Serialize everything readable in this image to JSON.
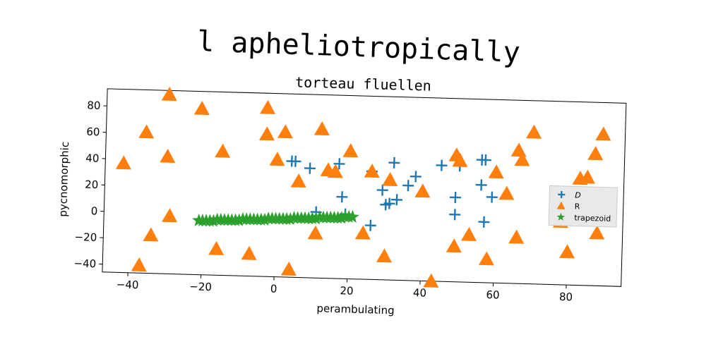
{
  "chart_data": {
    "type": "scatter",
    "title": "l apheliotropically",
    "subtitle": "torteau fluellen",
    "xlabel": "perambulating",
    "ylabel": "pycnomorphic",
    "xlim": [
      -47,
      95
    ],
    "ylim": [
      -46,
      93
    ],
    "x_ticks": [
      -40,
      -20,
      0,
      20,
      40,
      60,
      80
    ],
    "y_ticks": [
      -40,
      -20,
      0,
      20,
      40,
      60,
      80
    ],
    "grid": false,
    "legend_position": "right",
    "series": [
      {
        "name": "D",
        "marker": "plus",
        "color": "#1f77b4",
        "points": [
          [
            4,
            42
          ],
          [
            5,
            42
          ],
          [
            9,
            37
          ],
          [
            17,
            41
          ],
          [
            18,
            16
          ],
          [
            11,
            4
          ],
          [
            19,
            3
          ],
          [
            26,
            36
          ],
          [
            26,
            -5
          ],
          [
            29,
            22
          ],
          [
            30,
            11
          ],
          [
            31,
            12
          ],
          [
            32,
            43
          ],
          [
            33,
            15
          ],
          [
            36,
            26
          ],
          [
            38,
            33
          ],
          [
            45,
            42
          ],
          [
            50,
            42
          ],
          [
            49,
            18
          ],
          [
            49,
            5
          ],
          [
            56,
            47
          ],
          [
            57,
            47
          ],
          [
            56,
            28
          ],
          [
            57,
            0
          ],
          [
            59,
            19
          ]
        ]
      },
      {
        "name": "R",
        "marker": "triangle",
        "color": "#ff7f0e",
        "points": [
          [
            -42,
            37
          ],
          [
            -36,
            61
          ],
          [
            -37,
            -40
          ],
          [
            -34,
            -17
          ],
          [
            -30,
            90
          ],
          [
            -30,
            43
          ],
          [
            -29,
            -2
          ],
          [
            -21,
            80
          ],
          [
            -15,
            48
          ],
          [
            -16,
            -26
          ],
          [
            -7,
            -29
          ],
          [
            -3,
            82
          ],
          [
            -3,
            62
          ],
          [
            2,
            64
          ],
          [
            0,
            43
          ],
          [
            4,
            -40
          ],
          [
            6,
            27
          ],
          [
            12,
            67
          ],
          [
            11,
            -12
          ],
          [
            14,
            36
          ],
          [
            16,
            35
          ],
          [
            20,
            51
          ],
          [
            26,
            36
          ],
          [
            24,
            -11
          ],
          [
            31,
            30
          ],
          [
            30,
            -28
          ],
          [
            40,
            22
          ],
          [
            43,
            -46
          ],
          [
            49,
            50
          ],
          [
            50,
            46
          ],
          [
            49,
            -19
          ],
          [
            53,
            -10
          ],
          [
            58,
            -28
          ],
          [
            60,
            38
          ],
          [
            63,
            22
          ],
          [
            66,
            55
          ],
          [
            67,
            48
          ],
          [
            66,
            -11
          ],
          [
            70,
            69
          ],
          [
            78,
            2
          ],
          [
            80,
            -21
          ],
          [
            83,
            35
          ],
          [
            85,
            36
          ],
          [
            87,
            54
          ],
          [
            88,
            -6
          ],
          [
            89,
            69
          ]
        ]
      },
      {
        "name": "trapezoid",
        "marker": "star",
        "color": "#2ca02c",
        "points": [
          [
            -21,
            -5
          ],
          [
            -20,
            -5
          ],
          [
            -19,
            -5
          ],
          [
            -18,
            -5
          ],
          [
            -17,
            -5
          ],
          [
            -16,
            -4
          ],
          [
            -15,
            -4
          ],
          [
            -14,
            -4
          ],
          [
            -13,
            -4
          ],
          [
            -12,
            -4
          ],
          [
            -11,
            -4
          ],
          [
            -10,
            -4
          ],
          [
            -9,
            -3
          ],
          [
            -8,
            -3
          ],
          [
            -7,
            -3
          ],
          [
            -6,
            -3
          ],
          [
            -5,
            -3
          ],
          [
            -4,
            -3
          ],
          [
            -3,
            -3
          ],
          [
            -2,
            -2
          ],
          [
            -1,
            -2
          ],
          [
            0,
            -2
          ],
          [
            1,
            -2
          ],
          [
            2,
            -2
          ],
          [
            3,
            -2
          ],
          [
            4,
            -2
          ],
          [
            5,
            -1
          ],
          [
            6,
            -1
          ],
          [
            7,
            -1
          ],
          [
            8,
            -1
          ],
          [
            9,
            -1
          ],
          [
            10,
            -1
          ],
          [
            11,
            -1
          ],
          [
            12,
            0
          ],
          [
            13,
            0
          ],
          [
            14,
            0
          ],
          [
            15,
            0
          ],
          [
            16,
            0
          ],
          [
            17,
            0
          ],
          [
            18,
            0
          ],
          [
            19,
            1
          ],
          [
            20,
            1
          ],
          [
            21,
            1
          ]
        ]
      }
    ]
  }
}
